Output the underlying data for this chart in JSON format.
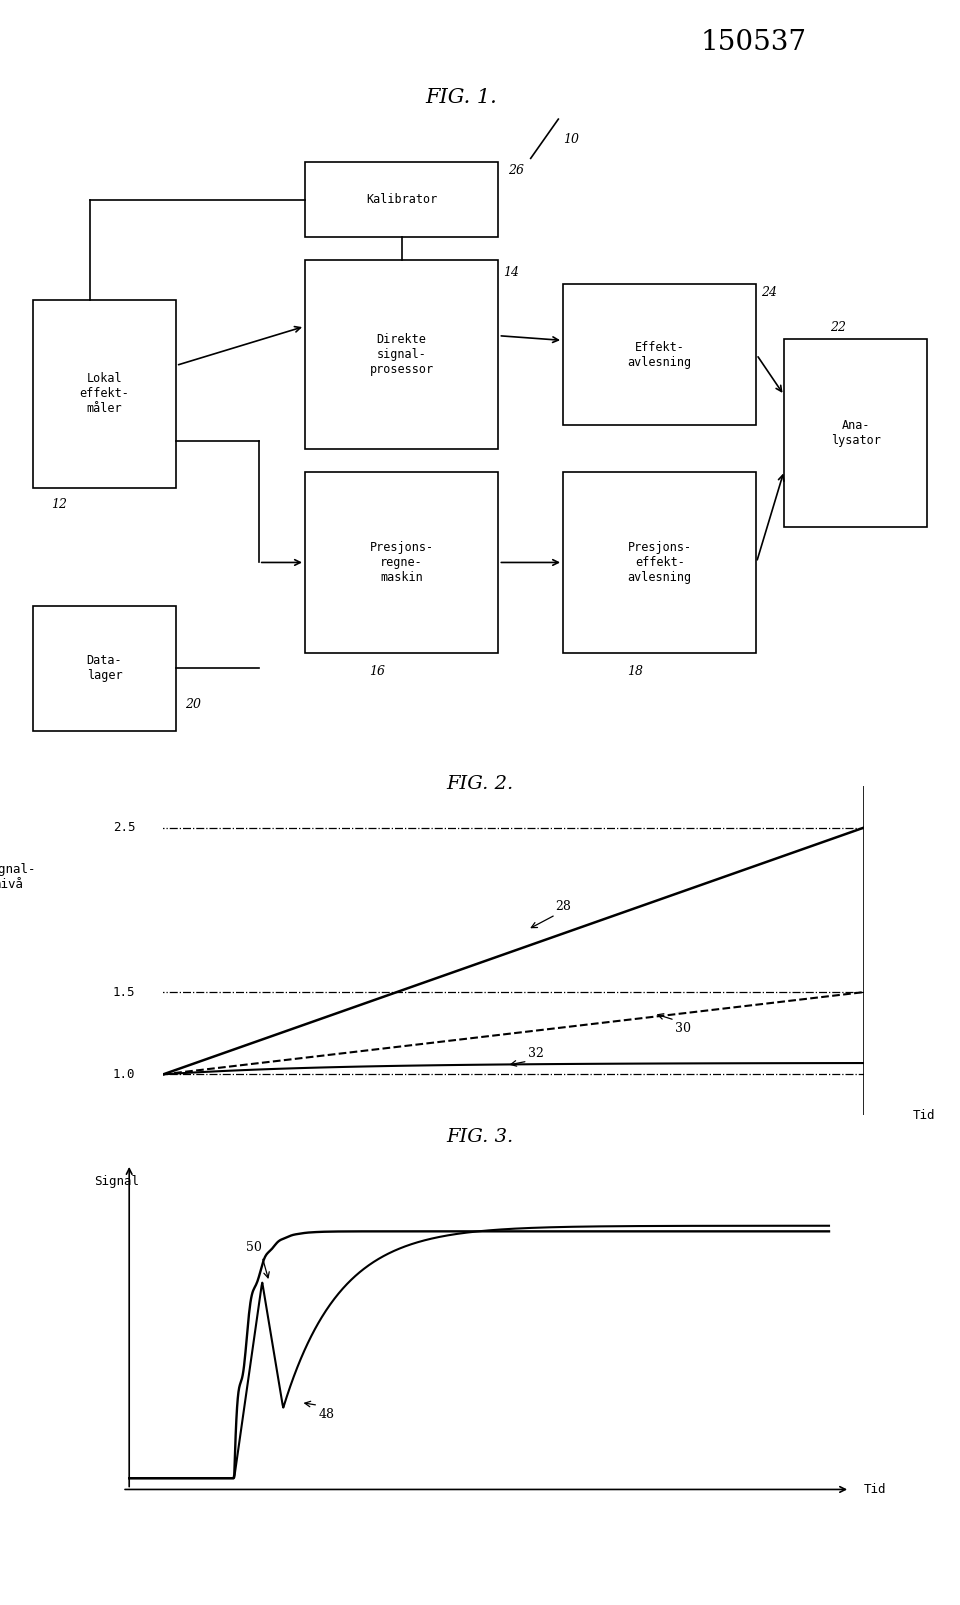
{
  "patent_number": "150537",
  "fig1_title": "FIG. 1.",
  "fig2_title": "FIG. 2.",
  "fig3_title": "FIG. 3.",
  "bg_color": "#ffffff",
  "lokal_label": "Lokal\neffekt-\nmåler",
  "direkte_label": "Direkte\nsignal-\nprosessor",
  "kalibrator_label": "Kalibrator",
  "effekt_avl_label": "Effekt-\navlesning",
  "presisjons_regn_label": "Presjons-\nregne-\nmaskin",
  "presisjons_eff_label": "Presjons-\neffekt-\navlesning",
  "analysator_label": "Ana-\nlysator",
  "datalager_label": "Data-\nlager",
  "fig2_ylabel": "Signal-\nnivå",
  "fig2_xlabel": "Tid",
  "fig3_ylabel": "Signal",
  "fig3_xlabel": "Tid"
}
